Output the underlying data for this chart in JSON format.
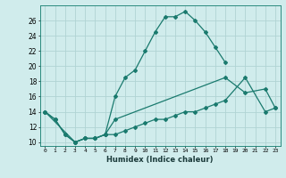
{
  "xlabel": "Humidex (Indice chaleur)",
  "background_color": "#d0ecec",
  "line_color": "#1a7a6e",
  "grid_color": "#b0d4d4",
  "xlim": [
    -0.5,
    23.5
  ],
  "ylim": [
    9.5,
    28.0
  ],
  "xticks": [
    0,
    1,
    2,
    3,
    4,
    5,
    6,
    7,
    8,
    9,
    10,
    11,
    12,
    13,
    14,
    15,
    16,
    17,
    18,
    19,
    20,
    21,
    22,
    23
  ],
  "yticks": [
    10,
    12,
    14,
    16,
    18,
    20,
    22,
    24,
    26
  ],
  "line1_x": [
    0,
    1,
    2,
    3,
    4,
    5,
    6,
    7,
    8,
    9,
    10,
    11,
    12,
    13,
    14,
    15,
    16,
    17,
    18
  ],
  "line1_y": [
    14.0,
    13.0,
    11.0,
    10.0,
    10.5,
    10.5,
    11.0,
    16.0,
    18.5,
    19.5,
    22.0,
    24.5,
    26.5,
    26.5,
    27.2,
    26.0,
    24.5,
    22.5,
    20.5
  ],
  "line2_x": [
    0,
    1,
    2,
    3,
    4,
    5,
    6,
    7,
    18,
    20,
    22,
    23
  ],
  "line2_y": [
    14.0,
    13.0,
    11.0,
    10.0,
    10.5,
    10.5,
    11.0,
    13.0,
    18.5,
    16.5,
    17.0,
    14.5
  ],
  "line3_x": [
    0,
    3,
    4,
    5,
    6,
    7,
    8,
    9,
    10,
    11,
    12,
    13,
    14,
    15,
    16,
    17,
    18,
    20,
    22,
    23
  ],
  "line3_y": [
    14.0,
    10.0,
    10.5,
    10.5,
    11.0,
    11.0,
    11.5,
    12.0,
    12.5,
    13.0,
    13.0,
    13.5,
    14.0,
    14.0,
    14.5,
    15.0,
    15.5,
    18.5,
    14.0,
    14.5
  ]
}
